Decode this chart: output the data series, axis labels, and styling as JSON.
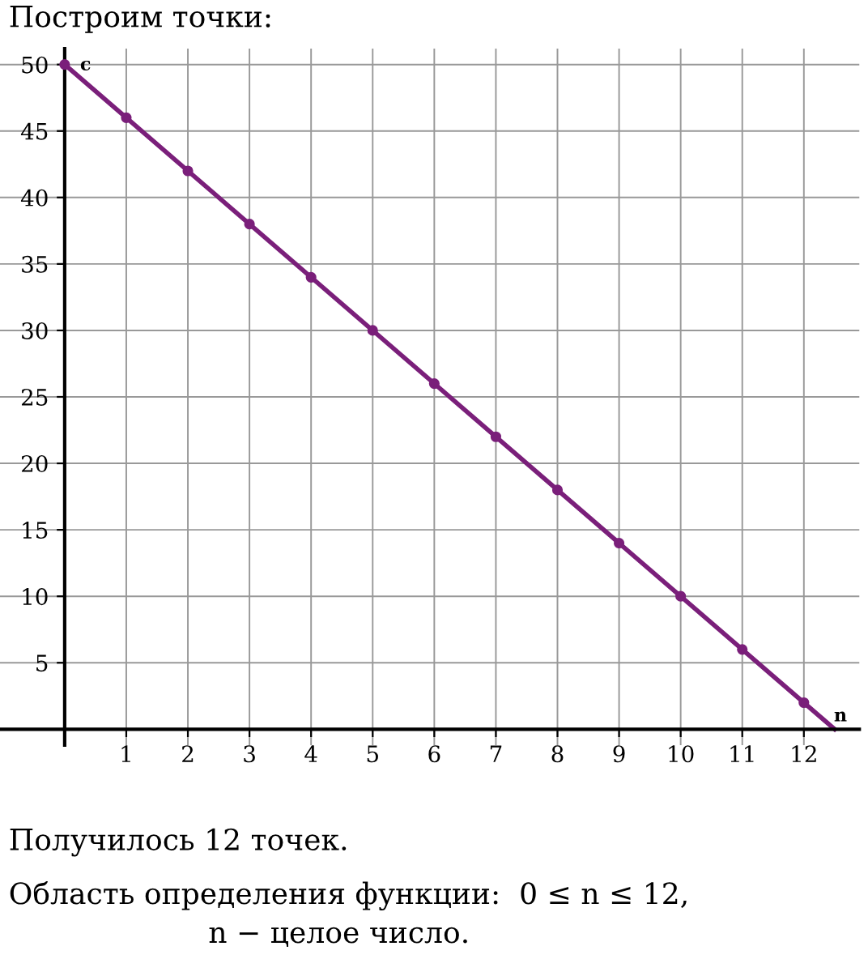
{
  "chart_data": {
    "type": "line",
    "title": "Построим точки:",
    "xlabel": "n",
    "ylabel": "c",
    "series": [
      {
        "color": "#7a1f7a",
        "x": [
          0,
          12.5
        ],
        "values": [
          50,
          0
        ],
        "marker": "none"
      },
      {
        "type": "scatter",
        "color": "#7a1f7a",
        "x": [
          0,
          1,
          2,
          3,
          4,
          5,
          6,
          7,
          8,
          9,
          10,
          11,
          12
        ],
        "values": [
          50,
          46,
          42,
          38,
          34,
          30,
          26,
          22,
          18,
          14,
          10,
          6,
          2
        ],
        "marker": "circle"
      }
    ],
    "xlim": [
      -1.05,
      12.9
    ],
    "ylim": [
      -1.2,
      51.2
    ],
    "xticks": [
      1,
      2,
      3,
      4,
      5,
      6,
      7,
      8,
      9,
      10,
      11,
      12
    ],
    "yticks": [
      5,
      10,
      15,
      20,
      25,
      30,
      35,
      40,
      45,
      50
    ],
    "grid": true,
    "annotations": [
      "Получилось 12 точек.",
      "Область определения функции:  0 ≤ n ≤ 12,",
      "n − целое число."
    ]
  }
}
